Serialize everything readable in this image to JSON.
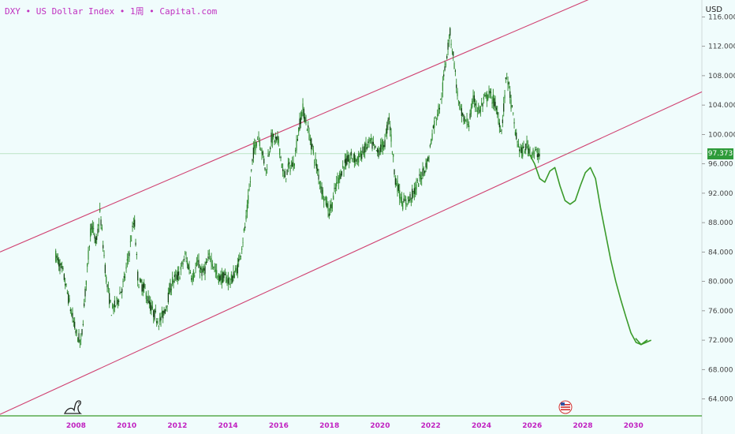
{
  "header": {
    "title": "DXY • US Dollar Index • 1周 • Capital.com"
  },
  "price_axis": {
    "unit": "USD",
    "current_price_label": "97.373"
  },
  "colors": {
    "background": "#f0fcfc",
    "candles": "#2e8b2e",
    "channel": "#d04070",
    "forecast": "#3a9a2a",
    "price_line": "#4caf50",
    "axis_text": "#444444",
    "year_text": "#c020c0"
  },
  "chart_data": {
    "type": "line",
    "title": "DXY • US Dollar Index • 1周 • Capital.com",
    "xlabel": "",
    "ylabel": "USD",
    "xlim": [
      2005.0,
      2032.7
    ],
    "ylim": [
      61.7,
      118.3
    ],
    "grid": false,
    "x_ticks": [
      "2008",
      "2010",
      "2012",
      "2014",
      "2016",
      "2018",
      "2020",
      "2022",
      "2024",
      "2026",
      "2028",
      "2030"
    ],
    "y_ticks": [
      "116.000",
      "112.000",
      "108.000",
      "104.000",
      "100.000",
      "96.000",
      "92.000",
      "88.000",
      "84.000",
      "80.000",
      "76.000",
      "72.000",
      "68.000",
      "64.000"
    ],
    "current_price": 97.373,
    "series": [
      {
        "kind": "price",
        "x": [
          2007.2,
          2007.5,
          2007.8,
          2008.0,
          2008.2,
          2008.4,
          2008.6,
          2008.8,
          2008.95,
          2009.2,
          2009.4,
          2009.6,
          2009.9,
          2010.1,
          2010.3,
          2010.45,
          2010.7,
          2011.0,
          2011.3,
          2011.5,
          2011.8,
          2012.1,
          2012.3,
          2012.6,
          2012.8,
          2013.0,
          2013.3,
          2013.6,
          2013.9,
          2014.1,
          2014.4,
          2014.7,
          2015.0,
          2015.2,
          2015.5,
          2015.7,
          2016.0,
          2016.2,
          2016.4,
          2016.6,
          2016.8,
          2016.95,
          2017.2,
          2017.4,
          2017.7,
          2018.0,
          2018.1,
          2018.3,
          2018.6,
          2018.9,
          2019.1,
          2019.4,
          2019.6,
          2019.9,
          2020.2,
          2020.35,
          2020.6,
          2020.9,
          2021.1,
          2021.4,
          2021.7,
          2021.9,
          2022.1,
          2022.4,
          2022.6,
          2022.75,
          2022.9,
          2023.1,
          2023.3,
          2023.5,
          2023.7,
          2023.9,
          2024.1,
          2024.3,
          2024.5,
          2024.8,
          2025.0,
          2025.2,
          2025.4,
          2025.6,
          2025.8,
          2026.0,
          2026.3
        ],
        "values": [
          83.5,
          81.0,
          76.0,
          73.0,
          71.5,
          80.0,
          88.0,
          85.0,
          89.5,
          80.0,
          76.0,
          77.0,
          80.0,
          84.0,
          88.5,
          80.0,
          79.0,
          76.0,
          74.5,
          76.0,
          80.0,
          81.0,
          83.5,
          80.5,
          82.5,
          81.0,
          83.5,
          80.5,
          80.5,
          80.0,
          82.0,
          88.0,
          97.5,
          100.0,
          95.0,
          99.5,
          99.0,
          94.0,
          95.5,
          96.0,
          101.0,
          103.5,
          100.0,
          97.0,
          92.5,
          89.5,
          90.5,
          93.5,
          96.0,
          97.0,
          96.5,
          98.0,
          99.0,
          97.5,
          99.0,
          102.5,
          94.0,
          90.5,
          91.0,
          92.5,
          95.0,
          96.5,
          101.0,
          104.5,
          110.0,
          114.0,
          110.5,
          104.0,
          102.0,
          101.5,
          105.0,
          103.0,
          104.5,
          105.5,
          104.5,
          100.5,
          108.5,
          103.5,
          99.0,
          97.5,
          98.5,
          97.5,
          97.4
        ]
      },
      {
        "kind": "forecast",
        "x": [
          2025.9,
          2026.1,
          2026.3,
          2026.5,
          2026.7,
          2026.9,
          2027.1,
          2027.3,
          2027.5,
          2027.7,
          2027.9,
          2028.1,
          2028.3,
          2028.5,
          2028.7,
          2028.9,
          2029.1,
          2029.3,
          2029.5,
          2029.7,
          2029.9,
          2030.1,
          2030.3,
          2030.5,
          2030.7
        ],
        "values": [
          97.3,
          96.0,
          94.0,
          93.5,
          95.0,
          95.5,
          93.0,
          91.0,
          90.5,
          91.0,
          93.0,
          94.8,
          95.5,
          94.0,
          90.0,
          86.5,
          83.0,
          80.0,
          77.5,
          75.2,
          73.0,
          71.7,
          71.4,
          71.7,
          72.0
        ]
      },
      {
        "kind": "channel-upper",
        "x": [
          2005.0,
          2029.0
        ],
        "values": [
          84.0,
          119.5
        ]
      },
      {
        "kind": "channel-lower",
        "x": [
          2005.0,
          2032.7
        ],
        "values": [
          61.9,
          105.8
        ]
      }
    ]
  }
}
